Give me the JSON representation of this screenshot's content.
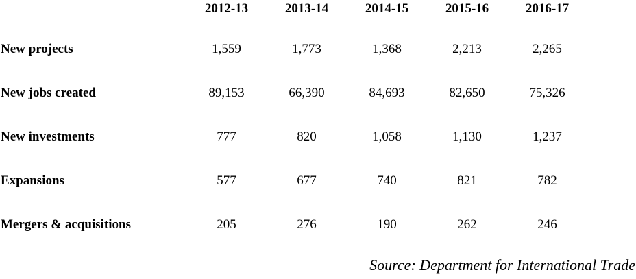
{
  "table": {
    "columns": [
      "2012-13",
      "2013-14",
      "2014-15",
      "2015-16",
      "2016-17"
    ],
    "rows": [
      {
        "label": "New projects",
        "values": [
          "1,559",
          "1,773",
          "1,368",
          "2,213",
          "2,265"
        ]
      },
      {
        "label": "New jobs created",
        "values": [
          "89,153",
          "66,390",
          "84,693",
          "82,650",
          "75,326"
        ]
      },
      {
        "label": "New investments",
        "values": [
          "777",
          "820",
          "1,058",
          "1,130",
          "1,237"
        ]
      },
      {
        "label": "Expansions",
        "values": [
          "577",
          "677",
          "740",
          "821",
          "782"
        ]
      },
      {
        "label": "Mergers & acquisitions",
        "values": [
          "205",
          "276",
          "190",
          "262",
          "246"
        ]
      }
    ],
    "source": "Source: Department for International Trade"
  },
  "chart_data": {
    "type": "table",
    "categories": [
      "2012-13",
      "2013-14",
      "2014-15",
      "2015-16",
      "2016-17"
    ],
    "series": [
      {
        "name": "New projects",
        "values": [
          1559,
          1773,
          1368,
          2213,
          2265
        ]
      },
      {
        "name": "New jobs created",
        "values": [
          89153,
          66390,
          84693,
          82650,
          75326
        ]
      },
      {
        "name": "New investments",
        "values": [
          777,
          820,
          1058,
          1130,
          1237
        ]
      },
      {
        "name": "Expansions",
        "values": [
          577,
          677,
          740,
          821,
          782
        ]
      },
      {
        "name": "Mergers & acquisitions",
        "values": [
          205,
          276,
          190,
          262,
          246
        ]
      }
    ],
    "title": "",
    "source": "Source: Department for International Trade"
  }
}
